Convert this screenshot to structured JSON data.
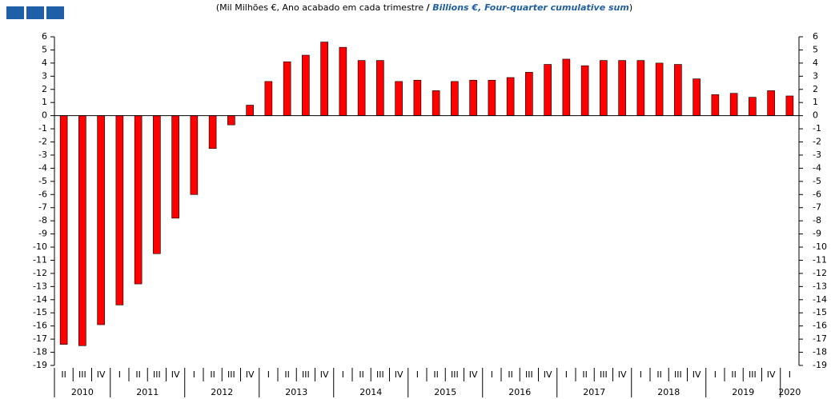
{
  "chart_data": {
    "type": "bar",
    "title_pt": "(Mil Milhões €, Ano acabado em cada trimestre",
    "title_sep": "/",
    "title_en": "Billions  €, Four-quarter cumulative sum",
    "title_end": ")",
    "categories": [
      "II",
      "III",
      "IV",
      "I",
      "II",
      "III",
      "IV",
      "I",
      "II",
      "III",
      "IV",
      "I",
      "II",
      "III",
      "IV",
      "I",
      "II",
      "III",
      "IV",
      "I",
      "II",
      "III",
      "IV",
      "I",
      "II",
      "III",
      "IV",
      "I",
      "II",
      "III",
      "IV",
      "I",
      "II",
      "III",
      "IV",
      "I",
      "II",
      "III",
      "IV",
      "I"
    ],
    "years": [
      "2010",
      "2011",
      "2012",
      "2013",
      "2014",
      "2015",
      "2016",
      "2017",
      "2018",
      "2019",
      "2020"
    ],
    "values": [
      -17.4,
      -17.5,
      -15.9,
      -14.4,
      -12.8,
      -10.5,
      -7.8,
      -6.0,
      -2.5,
      -0.7,
      0.8,
      2.6,
      4.1,
      4.6,
      5.6,
      5.2,
      4.2,
      4.2,
      2.6,
      2.7,
      1.9,
      2.6,
      2.7,
      2.7,
      2.9,
      3.3,
      3.9,
      4.3,
      3.8,
      4.2,
      4.2,
      4.2,
      4.0,
      3.9,
      2.8,
      1.6,
      1.7,
      1.4,
      1.9,
      1.5
    ],
    "color": "#ff0000",
    "ylim": [
      -19,
      6
    ],
    "yticks": [
      -19,
      -18,
      -17,
      -16,
      -15,
      -14,
      -13,
      -12,
      -11,
      -10,
      -9,
      -8,
      -7,
      -6,
      -5,
      -4,
      -3,
      -2,
      -1,
      0,
      1,
      2,
      3,
      4,
      5,
      6
    ]
  }
}
